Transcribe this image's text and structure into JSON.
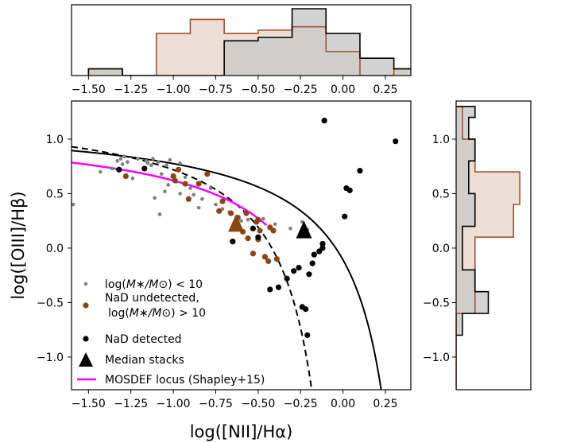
{
  "chart_data": [
    {
      "type": "histogram",
      "name": "top-marginal-histogram",
      "orientation": "vertical",
      "x_range": [
        -1.6,
        0.4
      ],
      "x_ticks": [
        -1.5,
        -1.25,
        -1.0,
        -0.75,
        -0.5,
        -0.25,
        0.0,
        0.25
      ],
      "x_tick_labels": [
        "−1.50",
        "−1.25",
        "−1.00",
        "−0.75",
        "−0.50",
        "−0.25",
        "0.00",
        "0.25"
      ],
      "series": [
        {
          "name": "NaD undetected",
          "color": "#a0522d",
          "fill": "#e8d6cc",
          "bins": [
            [
              -1.5,
              -1.3,
              0.1
            ],
            [
              -1.3,
              -1.1,
              0.0
            ],
            [
              -1.1,
              -0.9,
              0.63
            ],
            [
              -0.9,
              -0.7,
              0.84
            ],
            [
              -0.7,
              -0.5,
              0.63
            ],
            [
              -0.5,
              -0.3,
              0.68
            ],
            [
              -0.3,
              -0.1,
              0.73
            ],
            [
              -0.1,
              0.1,
              0.36
            ],
            [
              0.1,
              0.3,
              0.0
            ],
            [
              0.3,
              0.5,
              0.1
            ]
          ]
        },
        {
          "name": "NaD detected",
          "color": "#000000",
          "fill": "#c8c8c8",
          "bins": [
            [
              -1.5,
              -1.3,
              0.1
            ],
            [
              -1.3,
              -0.7,
              0.0
            ],
            [
              -0.7,
              -0.5,
              0.52
            ],
            [
              -0.5,
              -0.3,
              0.57
            ],
            [
              -0.3,
              -0.1,
              1.0
            ],
            [
              -0.1,
              0.1,
              0.63
            ],
            [
              0.1,
              0.3,
              0.26
            ],
            [
              0.3,
              0.5,
              0.1
            ]
          ]
        }
      ]
    },
    {
      "type": "scatter",
      "name": "bpt-diagram",
      "xlabel": "log([NII]/Hα)",
      "ylabel": "log([OIII]/Hβ)",
      "xlim": [
        -1.6,
        0.4
      ],
      "ylim": [
        -1.3,
        1.35
      ],
      "x_ticks": [
        -1.5,
        -1.25,
        -1.0,
        -0.75,
        -0.5,
        -0.25,
        0.0,
        0.25
      ],
      "x_tick_labels": [
        "−1.50",
        "−1.25",
        "−1.00",
        "−0.75",
        "−0.50",
        "−0.25",
        "0.00",
        "0.25"
      ],
      "y_ticks": [
        -1.0,
        -0.5,
        0.0,
        0.5,
        1.0
      ],
      "y_tick_labels": [
        "−1.0",
        "−0.5",
        "0.0",
        "0.5",
        "1.0"
      ],
      "legend_position": "lower-left",
      "series": [
        {
          "name": "lowmass",
          "label_prefix": "log(",
          "label_math": "M∗/M⊙",
          "label_suffix": ") < 10",
          "marker": "small-dot",
          "color": "#808080",
          "points": [
            [
              -1.59,
              0.4
            ],
            [
              -1.43,
              0.7
            ],
            [
              -1.36,
              0.73
            ],
            [
              -1.33,
              0.8
            ],
            [
              -1.31,
              0.82
            ],
            [
              -1.29,
              0.84
            ],
            [
              -1.3,
              0.77
            ],
            [
              -1.27,
              0.79
            ],
            [
              -1.24,
              0.64
            ],
            [
              -1.21,
              0.82
            ],
            [
              -1.16,
              0.8
            ],
            [
              -1.15,
              0.78
            ],
            [
              -1.13,
              0.76
            ],
            [
              -1.12,
              0.82
            ],
            [
              -1.09,
              0.79
            ],
            [
              -1.07,
              0.68
            ],
            [
              -1.04,
              0.76
            ],
            [
              -1.02,
              0.81
            ],
            [
              -0.96,
              0.78
            ],
            [
              -0.93,
              0.65
            ],
            [
              -1.03,
              0.58
            ],
            [
              -0.98,
              0.61
            ],
            [
              -1.05,
              0.52
            ],
            [
              -0.96,
              0.5
            ],
            [
              -0.9,
              0.55
            ],
            [
              -0.88,
              0.49
            ],
            [
              -1.11,
              0.46
            ],
            [
              -1.08,
              0.31
            ],
            [
              -0.85,
              0.37
            ],
            [
              -0.83,
              0.45
            ],
            [
              -0.78,
              0.55
            ],
            [
              -0.75,
              0.4
            ],
            [
              -0.71,
              0.36
            ],
            [
              -0.67,
              0.33
            ],
            [
              -0.63,
              0.28
            ],
            [
              -0.6,
              0.25
            ],
            [
              -0.47,
              0.27
            ],
            [
              -0.4,
              0.22
            ],
            [
              -0.31,
              0.18
            ],
            [
              -0.24,
              0.17
            ],
            [
              -0.21,
              0.17
            ],
            [
              -0.24,
              0.24
            ],
            [
              -0.56,
              0.26
            ]
          ]
        },
        {
          "name": "undetected",
          "label": "NaD undetected,",
          "label_line2_prefix": "log(",
          "label_line2_math": "M∗/M⊙",
          "label_line2_suffix": ") > 10",
          "marker": "dot",
          "color": "#8b4513",
          "points": [
            [
              -1.28,
              0.66
            ],
            [
              -1.0,
              0.66
            ],
            [
              -0.99,
              0.62
            ],
            [
              -0.97,
              0.72
            ],
            [
              -0.93,
              0.59
            ],
            [
              -0.91,
              0.45
            ],
            [
              -0.85,
              0.59
            ],
            [
              -0.8,
              0.68
            ],
            [
              -0.73,
              0.34
            ],
            [
              -0.71,
              0.43
            ],
            [
              -0.66,
              0.32
            ],
            [
              -0.65,
              0.06
            ],
            [
              -0.62,
              0.28
            ],
            [
              -0.59,
              0.15
            ],
            [
              -0.57,
              0.32
            ],
            [
              -0.56,
              0.09
            ],
            [
              -0.53,
              -0.05
            ],
            [
              -0.51,
              0.24
            ],
            [
              -0.5,
              0.08
            ],
            [
              -0.46,
              -0.08
            ],
            [
              -0.44,
              -0.12
            ],
            [
              -0.41,
              0.16
            ],
            [
              -0.39,
              -0.1
            ],
            [
              -0.5,
              0.26
            ],
            [
              -0.49,
              0.16
            ],
            [
              -0.43,
              0.19
            ]
          ]
        },
        {
          "name": "detected",
          "label": "NaD detected",
          "marker": "dot",
          "color": "#000000",
          "points": [
            [
              -1.32,
              0.72
            ],
            [
              -1.17,
              0.73
            ],
            [
              -0.65,
              0.06
            ],
            [
              -0.53,
              0.18
            ],
            [
              -0.5,
              0.1
            ],
            [
              -0.43,
              -0.38
            ],
            [
              -0.38,
              -0.36
            ],
            [
              -0.33,
              -0.28
            ],
            [
              -0.29,
              -0.21
            ],
            [
              -0.26,
              -0.18
            ],
            [
              -0.24,
              -0.54
            ],
            [
              -0.22,
              -0.56
            ],
            [
              -0.21,
              -0.8
            ],
            [
              -0.2,
              -0.24
            ],
            [
              -0.18,
              -0.14
            ],
            [
              -0.17,
              -0.06
            ],
            [
              -0.14,
              -0.03
            ],
            [
              -0.12,
              0.0
            ],
            [
              -0.11,
              1.17
            ],
            [
              -0.12,
              0.04
            ],
            [
              0.01,
              0.29
            ],
            [
              0.02,
              0.55
            ],
            [
              0.04,
              0.53
            ],
            [
              0.1,
              0.71
            ],
            [
              0.31,
              0.98
            ]
          ]
        },
        {
          "name": "stacks",
          "label": "Median stacks",
          "marker": "triangle",
          "points": [
            [
              -0.63,
              0.23,
              "#8b4513"
            ],
            [
              -0.23,
              0.17,
              "#000000"
            ]
          ]
        }
      ],
      "lines": [
        {
          "name": "Kauffmann+03",
          "style": "dashed",
          "color": "#000000"
        },
        {
          "name": "Kewley+01",
          "style": "solid",
          "color": "#000000"
        },
        {
          "name": "MOSDEF locus",
          "label": "MOSDEF locus (Shapley+15)",
          "style": "solid",
          "color": "#ff00ff",
          "x_range": [
            -1.6,
            -0.45
          ]
        }
      ]
    },
    {
      "type": "histogram",
      "name": "right-marginal-histogram",
      "orientation": "horizontal",
      "y_range": [
        -1.3,
        1.35
      ],
      "y_ticks": [
        -1.0,
        -0.5,
        0.0,
        0.5,
        1.0
      ],
      "y_tick_labels": [
        "−1.0",
        "−0.5",
        "0.0",
        "0.5",
        "1.0"
      ],
      "series": [
        {
          "name": "NaD undetected",
          "color": "#a0522d",
          "fill": "#e8d6cc",
          "bins": [
            [
              -1.3,
              -0.6,
              0.0
            ],
            [
              -0.6,
              -0.4,
              0.27
            ],
            [
              -0.4,
              0.1,
              0.27
            ],
            [
              0.1,
              0.4,
              0.82
            ],
            [
              0.4,
              0.7,
              0.91
            ],
            [
              0.7,
              1.0,
              0.27
            ],
            [
              1.0,
              1.3,
              0.09
            ]
          ]
        },
        {
          "name": "NaD detected",
          "color": "#000000",
          "fill": "#c8c8c8",
          "bins": [
            [
              -0.8,
              -0.6,
              0.09
            ],
            [
              -0.6,
              -0.4,
              0.46
            ],
            [
              -0.4,
              -0.2,
              0.27
            ],
            [
              -0.2,
              0.2,
              0.09
            ],
            [
              0.2,
              0.5,
              0.27
            ],
            [
              0.5,
              0.8,
              0.18
            ],
            [
              0.8,
              1.0,
              0.27
            ],
            [
              1.0,
              1.2,
              0.18
            ],
            [
              1.2,
              1.3,
              0.27
            ]
          ]
        }
      ]
    }
  ]
}
